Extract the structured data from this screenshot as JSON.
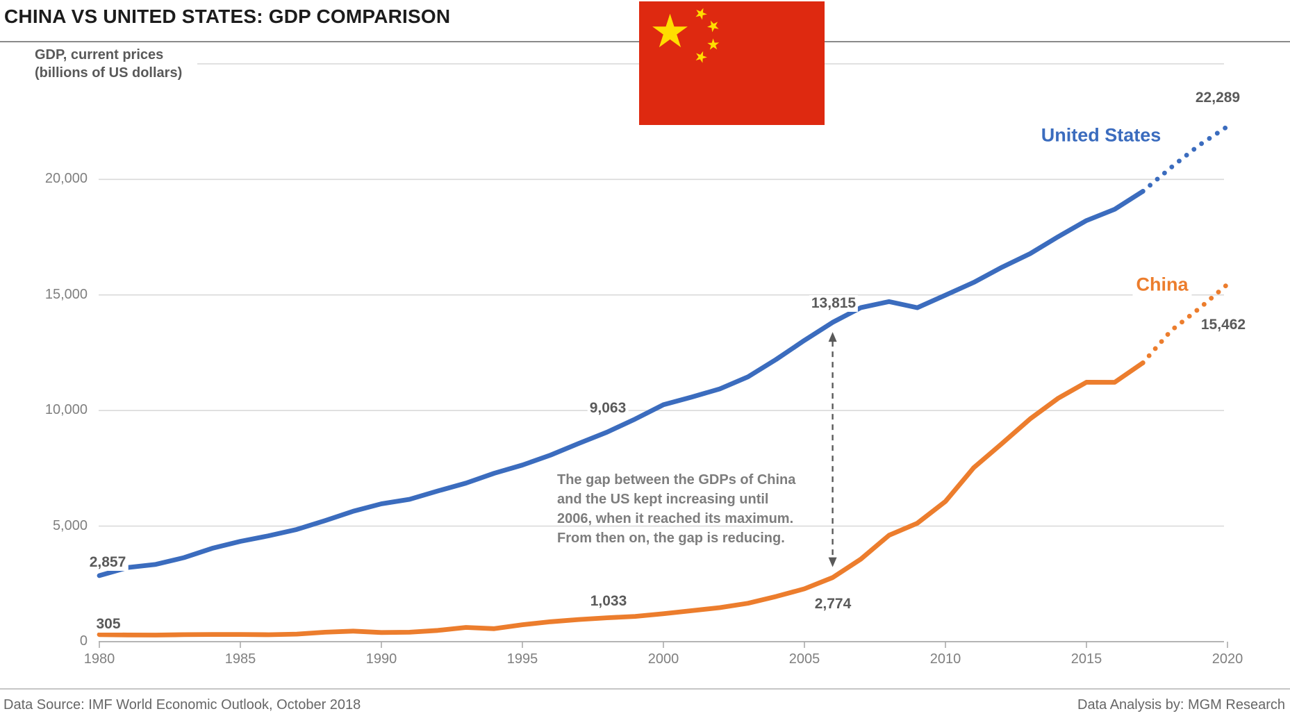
{
  "title": "CHINA VS UNITED STATES: GDP COMPARISON",
  "subtitle": {
    "line1": "GDP, current prices",
    "line2": "(billions of US dollars)"
  },
  "series_labels": {
    "us": "United States",
    "china": "China"
  },
  "annotation": {
    "lines": [
      "The gap between the GDPs of China",
      "and the US kept increasing until",
      "2006, when it reached its maximum.",
      "From then on, the gap is reducing."
    ]
  },
  "footer": {
    "source": "Data Source: IMF World Economic Outlook, October 2018",
    "analysis": "Data Analysis by: MGM Research"
  },
  "colors": {
    "us": "#3B6CBE",
    "china": "#EC7D2D",
    "data_label": "#5A5A5A",
    "axis_label": "#7F7F7F",
    "grid": "#DADADA",
    "axis_line": "#B5B5B5",
    "tick": "#ABABAB",
    "annotation_grey": "#7D7D7D",
    "arrow": "#595959",
    "flag_red": "#DE2910",
    "flag_yellow": "#FFDE00"
  },
  "chart_data": {
    "type": "line",
    "title": "CHINA VS UNITED STATES: GDP COMPARISON",
    "xlabel": "",
    "ylabel": "GDP, current prices (billions of US dollars)",
    "x": [
      1980,
      1981,
      1982,
      1983,
      1984,
      1985,
      1986,
      1987,
      1988,
      1989,
      1990,
      1991,
      1992,
      1993,
      1994,
      1995,
      1996,
      1997,
      1998,
      1999,
      2000,
      2001,
      2002,
      2003,
      2004,
      2005,
      2006,
      2007,
      2008,
      2009,
      2010,
      2011,
      2012,
      2013,
      2014,
      2015,
      2016,
      2017,
      2018,
      2019,
      2020
    ],
    "series": [
      {
        "name": "United States",
        "color": "#3B6CBE",
        "projection_from": 2017,
        "values": [
          2857,
          3207,
          3344,
          3634,
          4038,
          4339,
          4580,
          4855,
          5236,
          5642,
          5963,
          6158,
          6520,
          6859,
          7287,
          7640,
          8073,
          8578,
          9063,
          9631,
          10252,
          10582,
          10936,
          11458,
          12214,
          13037,
          13815,
          14452,
          14713,
          14449,
          14992,
          15543,
          16197,
          16785,
          17522,
          18219,
          18707,
          19485,
          20513,
          21482,
          22289
        ]
      },
      {
        "name": "China",
        "color": "#EC7D2D",
        "projection_from": 2017,
        "values": [
          305,
          289,
          284,
          304,
          313,
          311,
          300,
          328,
          408,
          456,
          396,
          410,
          488,
          616,
          561,
          732,
          861,
          958,
          1033,
          1094,
          1211,
          1339,
          1471,
          1660,
          1955,
          2286,
          2774,
          3571,
          4604,
          5122,
          6066,
          7522,
          8570,
          9635,
          10535,
          11226,
          11222,
          12062,
          13457,
          14414,
          15462
        ]
      }
    ],
    "ylim": [
      0,
      25000
    ],
    "ytick_step": 5000,
    "yticks_labeled": [
      0,
      5000,
      10000,
      15000,
      20000
    ],
    "xticks": [
      1980,
      1985,
      1990,
      1995,
      2000,
      2005,
      2010,
      2015,
      2020
    ],
    "grid": "horizontal",
    "legend_position": "inline-end-of-line",
    "labeled_points": [
      {
        "series": "United States",
        "year": 1980,
        "value": 2857,
        "label": "2,857"
      },
      {
        "series": "China",
        "year": 1980,
        "value": 305,
        "label": "305"
      },
      {
        "series": "United States",
        "year": 1998,
        "value": 9063,
        "label": "9,063"
      },
      {
        "series": "China",
        "year": 1998,
        "value": 1033,
        "label": "1,033"
      },
      {
        "series": "United States",
        "year": 2006,
        "value": 13815,
        "label": "13,815"
      },
      {
        "series": "China",
        "year": 2006,
        "value": 2774,
        "label": "2,774"
      },
      {
        "series": "United States",
        "year": 2020,
        "value": 22289,
        "label": "22,289"
      },
      {
        "series": "China",
        "year": 2020,
        "value": 15462,
        "label": "15,462"
      }
    ],
    "gap_arrow": {
      "year": 2006,
      "from_value": 13815,
      "to_value": 2774
    }
  }
}
